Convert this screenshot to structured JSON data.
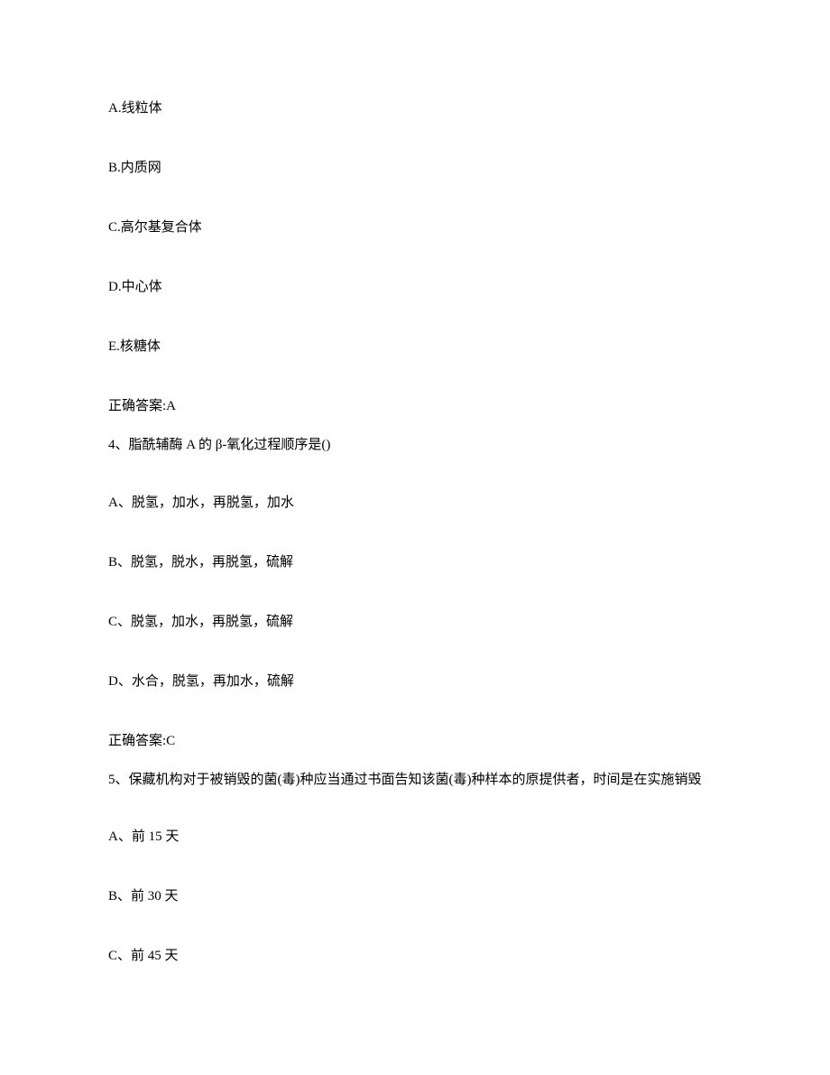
{
  "q3": {
    "optionA": "A.线粒体",
    "optionB": "B.内质网",
    "optionC": "C.高尔基复合体",
    "optionD": "D.中心体",
    "optionE": "E.核糖体",
    "answer": "正确答案:A"
  },
  "q4": {
    "stem": "4、脂酰辅酶 A 的 β-氧化过程顺序是()",
    "optionA": "A、脱氢，加水，再脱氢，加水",
    "optionB": "B、脱氢，脱水，再脱氢，硫解",
    "optionC": "C、脱氢，加水，再脱氢，硫解",
    "optionD": "D、水合，脱氢，再加水，硫解",
    "answer": "正确答案:C"
  },
  "q5": {
    "stem": "5、保藏机构对于被销毁的菌(毒)种应当通过书面告知该菌(毒)种样本的原提供者，时间是在实施销毁",
    "optionA": "A、前 15 天",
    "optionB": "B、前 30 天",
    "optionC": "C、前 45 天"
  }
}
